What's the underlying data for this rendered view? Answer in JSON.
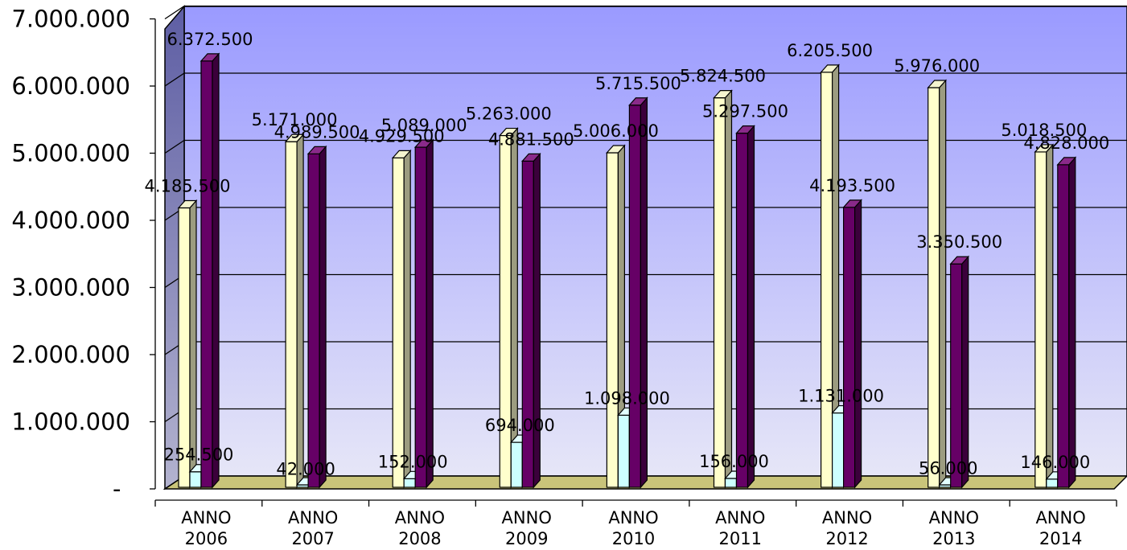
{
  "chart_data": {
    "type": "bar",
    "categories": [
      [
        "ANNO",
        "2006"
      ],
      [
        "ANNO",
        "2007"
      ],
      [
        "ANNO",
        "2008"
      ],
      [
        "ANNO",
        "2009"
      ],
      [
        "ANNO",
        "2010"
      ],
      [
        "ANNO",
        "2011"
      ],
      [
        "ANNO",
        "2012"
      ],
      [
        "ANNO",
        "2013"
      ],
      [
        "ANNO",
        "2014"
      ]
    ],
    "series": [
      {
        "color": "#ffffcc",
        "side": "#9c9c80",
        "top": "#f4f4cf",
        "values": [
          4185500,
          5171000,
          4929500,
          5263000,
          5006000,
          5824500,
          6205500,
          5976000,
          5018500
        ],
        "labels": [
          "4.185.500",
          "5.171.000",
          "4.929.500",
          "5.263.000",
          "5.006.000",
          "5.824.500",
          "6.205.500",
          "5.976.000",
          "5.018.500"
        ]
      },
      {
        "color": "#ccffff",
        "side": "#7aa9a9",
        "top": "#e2ffff",
        "values": [
          254500,
          42000,
          152000,
          694000,
          1098000,
          156000,
          1131000,
          56000,
          146000
        ],
        "labels": [
          "254.500",
          "42.000",
          "152.000",
          "694.000",
          "1.098.000",
          "156.000",
          "1.131.000",
          "56.000",
          "146.000"
        ]
      },
      {
        "color": "#660066",
        "side": "#3b003b",
        "top": "#8a2a8a",
        "values": [
          6372500,
          4989500,
          5089000,
          4881500,
          5715500,
          5297500,
          4193500,
          3350500,
          4828000
        ],
        "labels": [
          "6.372.500",
          "4.989.500",
          "5.089.000",
          "4.881.500",
          "5.715.500",
          "5.297.500",
          "4.193.500",
          "3.350.500",
          "4.828.000"
        ]
      }
    ],
    "yticks": [
      "-",
      "1.000.000",
      "2.000.000",
      "3.000.000",
      "4.000.000",
      "5.000.000",
      "6.000.000",
      "7.000.000"
    ],
    "ylim": [
      0,
      7000000
    ],
    "grid": true,
    "legend": "none"
  }
}
